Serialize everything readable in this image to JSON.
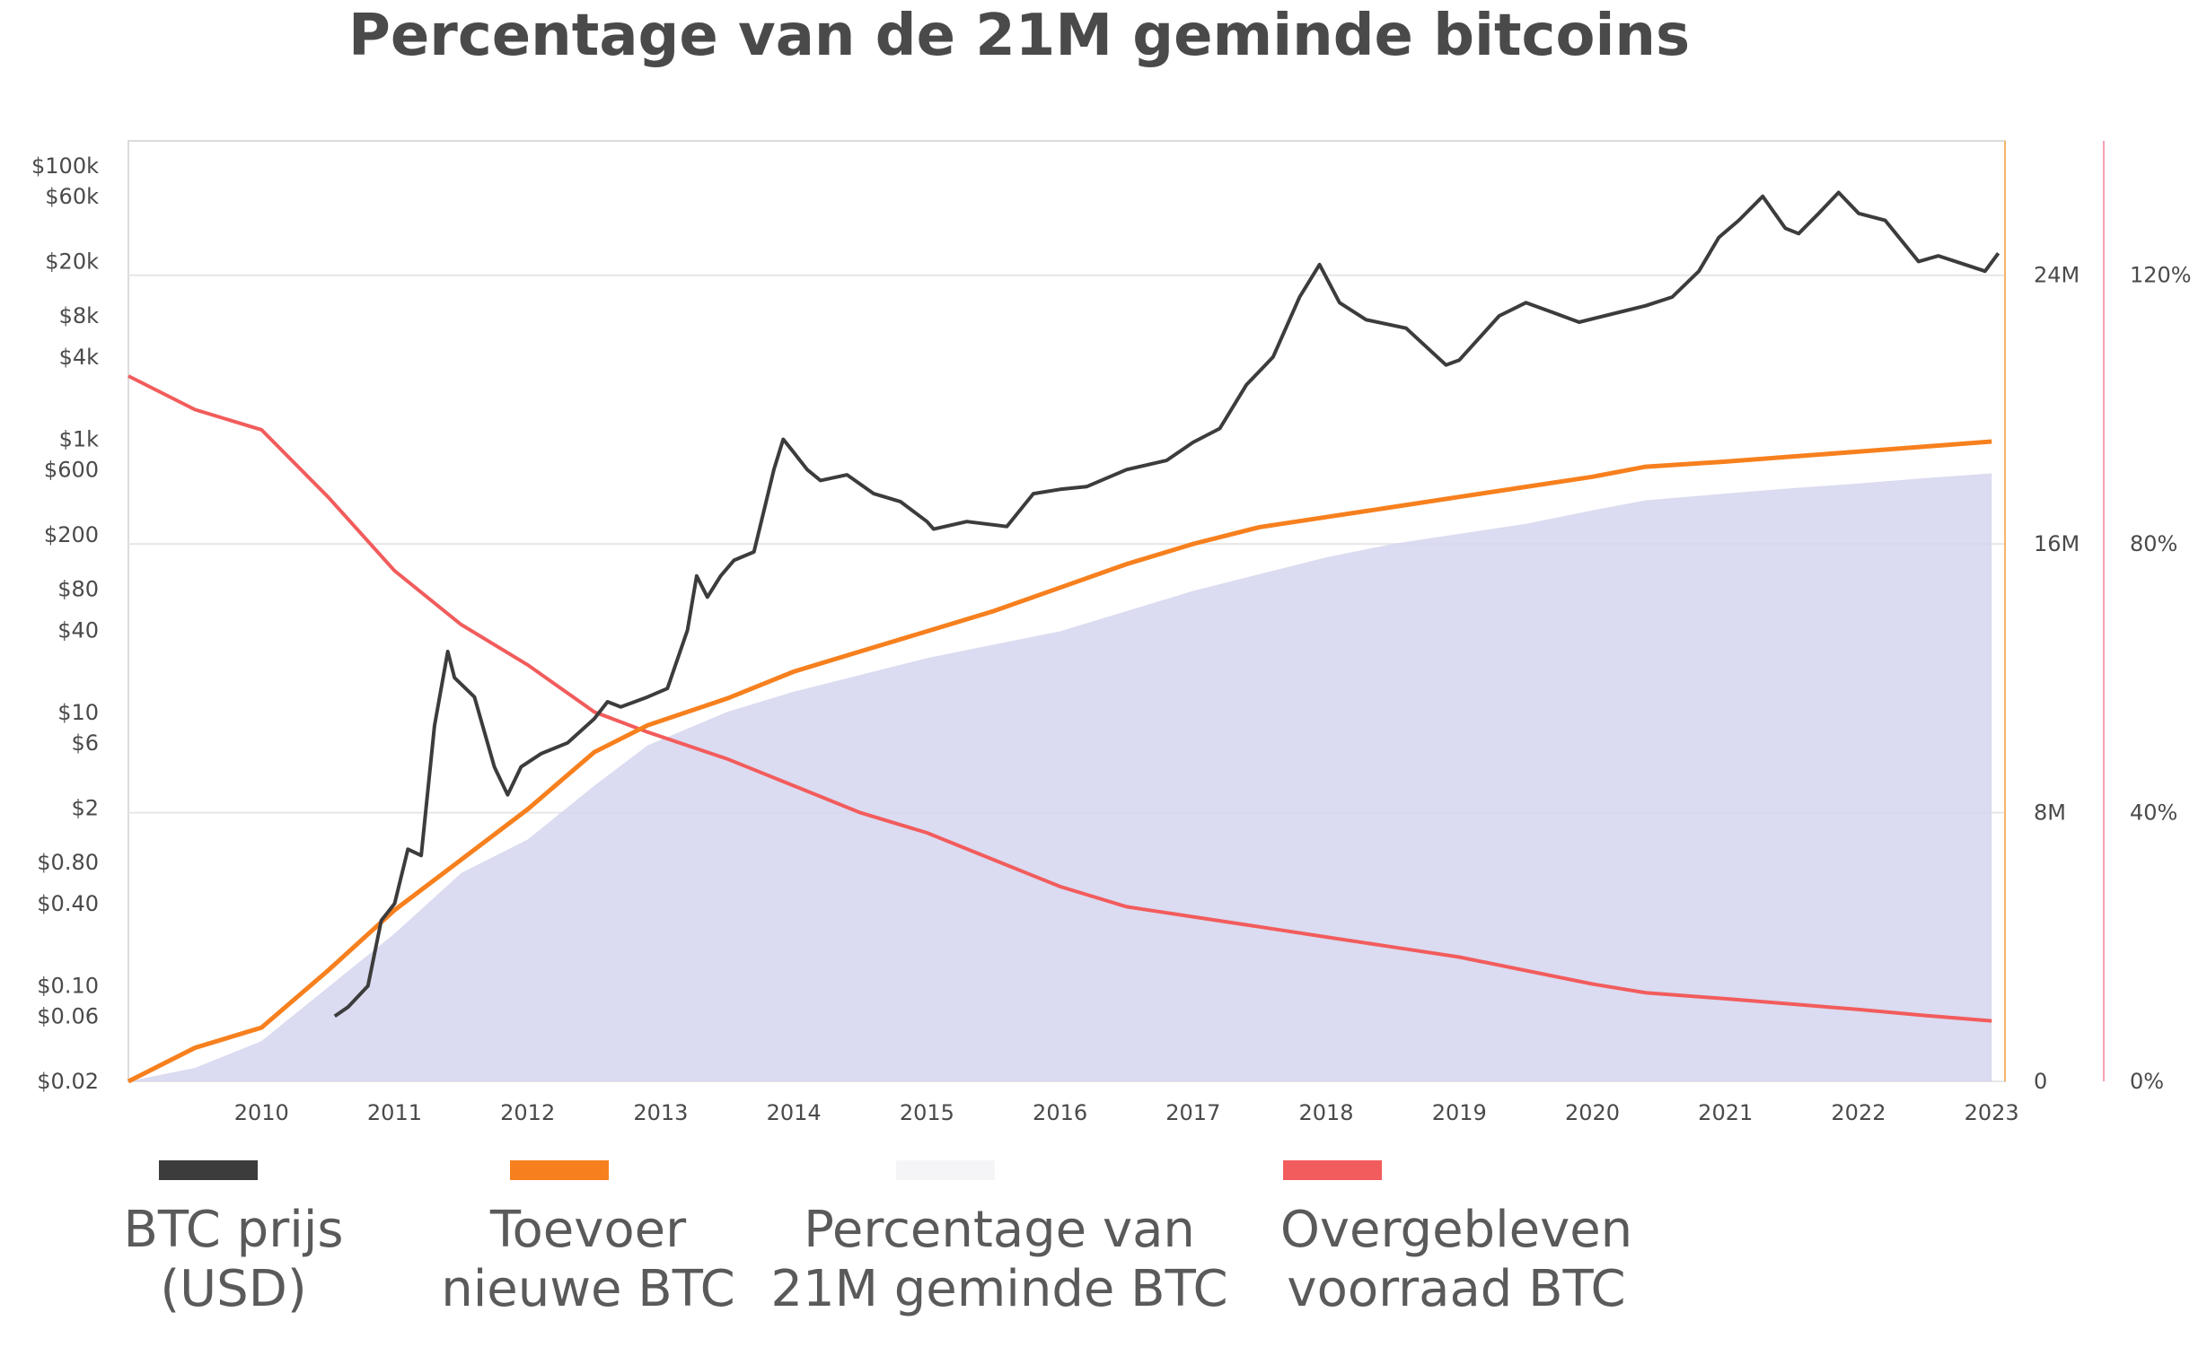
{
  "title": "Percentage van de 21M geminde bitcoins",
  "colors": {
    "price": "#3c3c3c",
    "supply": "#f7801e",
    "percentage_fill": "#d5d5ee",
    "percentage_swatch": "#f5f5f8",
    "remaining": "#f25c5c",
    "right_axis_orange": "#f7b46a",
    "right_axis_pink": "#f5a0b0",
    "grid": "#e6e6e6"
  },
  "chart_data": {
    "type": "line",
    "x_ticks": [
      "2010",
      "2011",
      "2012",
      "2013",
      "2014",
      "2015",
      "2016",
      "2017",
      "2018",
      "2019",
      "2020",
      "2021",
      "2022",
      "2023"
    ],
    "x_range": [
      2009.0,
      2023.1
    ],
    "left_axis": {
      "scale": "log",
      "ticks": [
        "$100k",
        "$60k",
        "$20k",
        "$8k",
        "$4k",
        "$1k",
        "$600",
        "$200",
        "$80",
        "$40",
        "$10",
        "$6",
        "$2",
        "$0.80",
        "$0.40",
        "$0.10",
        "$0.06",
        "$0.02"
      ],
      "tick_values": [
        100000,
        60000,
        20000,
        8000,
        4000,
        1000,
        600,
        200,
        80,
        40,
        10,
        6,
        2,
        0.8,
        0.4,
        0.1,
        0.06,
        0.02
      ],
      "range": [
        0.02,
        100000
      ]
    },
    "supply_axis": {
      "ticks": [
        "24M",
        "16M",
        "8M",
        "0"
      ],
      "tick_values": [
        24,
        16,
        8,
        0
      ],
      "range": [
        0,
        28
      ]
    },
    "percent_axis": {
      "ticks": [
        "120%",
        "80%",
        "40%",
        "0%"
      ],
      "tick_values": [
        120,
        80,
        40,
        0
      ],
      "range": [
        0,
        140
      ]
    },
    "series": [
      {
        "name": "BTC prijs\n(USD)",
        "axis": "price",
        "x": [
          2010.55,
          2010.65,
          2010.8,
          2010.9,
          2011.0,
          2011.1,
          2011.2,
          2011.3,
          2011.4,
          2011.45,
          2011.6,
          2011.75,
          2011.85,
          2011.95,
          2012.1,
          2012.3,
          2012.5,
          2012.6,
          2012.7,
          2012.9,
          2013.05,
          2013.2,
          2013.27,
          2013.35,
          2013.45,
          2013.55,
          2013.7,
          2013.85,
          2013.92,
          2014.0,
          2014.1,
          2014.2,
          2014.4,
          2014.6,
          2014.8,
          2015.0,
          2015.05,
          2015.3,
          2015.6,
          2015.8,
          2016.0,
          2016.2,
          2016.5,
          2016.8,
          2017.0,
          2017.2,
          2017.4,
          2017.6,
          2017.8,
          2017.95,
          2018.1,
          2018.3,
          2018.6,
          2018.9,
          2019.0,
          2019.3,
          2019.5,
          2019.7,
          2019.9,
          2020.2,
          2020.4,
          2020.6,
          2020.8,
          2020.95,
          2021.1,
          2021.28,
          2021.45,
          2021.55,
          2021.7,
          2021.85,
          2022.0,
          2022.2,
          2022.45,
          2022.6,
          2022.8,
          2022.95,
          2023.05
        ],
        "values": [
          0.06,
          0.07,
          0.1,
          0.3,
          0.4,
          1,
          0.9,
          8,
          28,
          18,
          13,
          4,
          2.5,
          4,
          5,
          6,
          9,
          12,
          11,
          13,
          15,
          40,
          100,
          70,
          100,
          130,
          150,
          600,
          1000,
          800,
          600,
          500,
          550,
          400,
          350,
          250,
          220,
          250,
          230,
          400,
          430,
          450,
          600,
          700,
          950,
          1200,
          2500,
          4000,
          11000,
          19000,
          10000,
          7500,
          6500,
          3500,
          3800,
          8000,
          10000,
          8500,
          7200,
          8500,
          9500,
          11000,
          17000,
          30000,
          40000,
          60000,
          35000,
          32000,
          45000,
          64000,
          45000,
          40000,
          20000,
          22000,
          19000,
          17000,
          23000
        ]
      },
      {
        "name": "Toevoer\nnieuwe BTC",
        "axis": "supply",
        "x": [
          2009.0,
          2009.5,
          2010.0,
          2010.5,
          2011.0,
          2011.5,
          2012.0,
          2012.5,
          2012.9,
          2013.5,
          2014.0,
          2014.5,
          2015.0,
          2015.5,
          2016.0,
          2016.5,
          2017.0,
          2017.5,
          2018.0,
          2018.5,
          2019.0,
          2019.5,
          2020.0,
          2020.4,
          2021.0,
          2021.5,
          2022.0,
          2022.5,
          2023.0
        ],
        "values": [
          0,
          1,
          1.6,
          3.3,
          5.1,
          6.6,
          8.1,
          9.8,
          10.6,
          11.4,
          12.2,
          12.8,
          13.4,
          14.0,
          14.7,
          15.4,
          16.0,
          16.5,
          16.8,
          17.1,
          17.4,
          17.7,
          18.0,
          18.3,
          18.45,
          18.6,
          18.75,
          18.9,
          19.05
        ]
      },
      {
        "name": "Percentage van\n21M geminde BTC",
        "axis": "percent",
        "x": [
          2009.0,
          2009.5,
          2010.0,
          2010.5,
          2011.0,
          2011.5,
          2012.0,
          2012.5,
          2012.9,
          2013.5,
          2014.0,
          2014.5,
          2015.0,
          2015.5,
          2016.0,
          2016.5,
          2017.0,
          2017.5,
          2018.0,
          2018.5,
          2019.0,
          2019.5,
          2020.0,
          2020.4,
          2021.0,
          2021.5,
          2022.0,
          2022.5,
          2023.0
        ],
        "values": [
          0,
          2,
          6,
          14,
          22,
          31,
          36,
          44,
          50,
          55,
          58,
          60.5,
          63,
          65,
          67,
          70,
          73,
          75.5,
          78,
          80,
          81.5,
          83,
          85,
          86.5,
          87.5,
          88.3,
          89,
          89.8,
          90.5
        ]
      },
      {
        "name": "Overgebleven\nvoorraad BTC",
        "axis": "percent",
        "x": [
          2009.0,
          2009.5,
          2010.0,
          2010.5,
          2011.0,
          2011.5,
          2012.0,
          2012.5,
          2012.9,
          2013.5,
          2014.0,
          2014.5,
          2015.0,
          2015.5,
          2016.0,
          2016.5,
          2017.0,
          2017.5,
          2018.0,
          2018.5,
          2019.0,
          2019.5,
          2020.0,
          2020.4,
          2021.0,
          2021.5,
          2022.0,
          2022.5,
          2023.0
        ],
        "values": [
          105,
          100,
          97,
          87,
          76,
          68,
          62,
          55,
          52,
          48,
          44,
          40,
          37,
          33,
          29,
          26,
          24.5,
          23,
          21.5,
          20,
          18.5,
          16.5,
          14.5,
          13.2,
          12.3,
          11.5,
          10.7,
          9.8,
          9
        ]
      }
    ]
  }
}
